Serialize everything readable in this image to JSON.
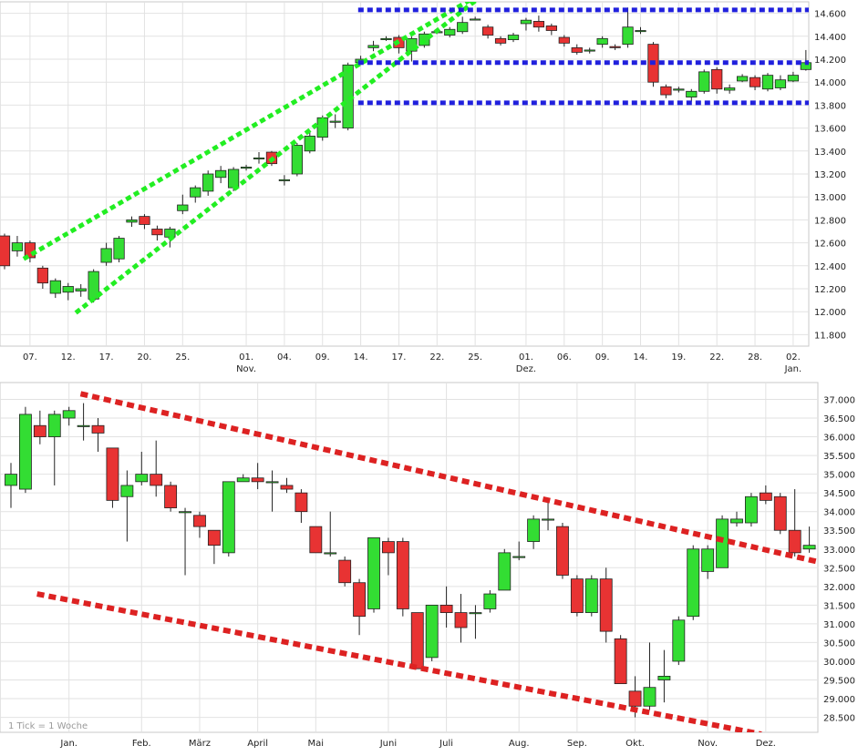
{
  "chart_data": [
    {
      "type": "candlestick",
      "name": "daily",
      "ylim": [
        11700,
        14700
      ],
      "yticks": [
        "11.800",
        "12.000",
        "12.200",
        "12.400",
        "12.600",
        "12.800",
        "13.000",
        "13.200",
        "13.400",
        "13.600",
        "13.800",
        "14.000",
        "14.200",
        "14.400",
        "14.600"
      ],
      "ytick_values": [
        11800,
        12000,
        12200,
        12400,
        12600,
        12800,
        13000,
        13200,
        13400,
        13600,
        13800,
        14000,
        14200,
        14400,
        14600
      ],
      "xticks": [
        {
          "label": "07.",
          "month": "",
          "i": 2
        },
        {
          "label": "12.",
          "month": "",
          "i": 5
        },
        {
          "label": "17.",
          "month": "",
          "i": 8
        },
        {
          "label": "20.",
          "month": "",
          "i": 11
        },
        {
          "label": "25.",
          "month": "",
          "i": 14
        },
        {
          "label": "01.",
          "month": "Nov.",
          "i": 19
        },
        {
          "label": "04.",
          "month": "",
          "i": 22
        },
        {
          "label": "09.",
          "month": "",
          "i": 25
        },
        {
          "label": "14.",
          "month": "",
          "i": 28
        },
        {
          "label": "17.",
          "month": "",
          "i": 31
        },
        {
          "label": "22.",
          "month": "",
          "i": 34
        },
        {
          "label": "25.",
          "month": "",
          "i": 37
        },
        {
          "label": "01.",
          "month": "Dez.",
          "i": 41
        },
        {
          "label": "06.",
          "month": "",
          "i": 44
        },
        {
          "label": "09.",
          "month": "",
          "i": 47
        },
        {
          "label": "14.",
          "month": "",
          "i": 50
        },
        {
          "label": "19.",
          "month": "",
          "i": 53
        },
        {
          "label": "22.",
          "month": "",
          "i": 56
        },
        {
          "label": "28.",
          "month": "",
          "i": 59
        },
        {
          "label": "02.",
          "month": "Jan.",
          "i": 62
        }
      ],
      "candles": [
        [
          12660,
          12400,
          12680,
          12370
        ],
        [
          12530,
          12600,
          12660,
          12480
        ],
        [
          12600,
          12470,
          12620,
          12430
        ],
        [
          12380,
          12250,
          12400,
          12200
        ],
        [
          12160,
          12270,
          12290,
          12120
        ],
        [
          12170,
          12220,
          12250,
          12100
        ],
        [
          12180,
          12200,
          12240,
          12130
        ],
        [
          12110,
          12350,
          12370,
          12080
        ],
        [
          12430,
          12550,
          12600,
          12400
        ],
        [
          12460,
          12640,
          12660,
          12430
        ],
        [
          12780,
          12800,
          12830,
          12740
        ],
        [
          12830,
          12760,
          12850,
          12720
        ],
        [
          12720,
          12670,
          12750,
          12620
        ],
        [
          12650,
          12720,
          12740,
          12560
        ],
        [
          12880,
          12930,
          13020,
          12850
        ],
        [
          13000,
          13080,
          13100,
          12950
        ],
        [
          13050,
          13200,
          13230,
          13010
        ],
        [
          13170,
          13230,
          13270,
          13120
        ],
        [
          13080,
          13240,
          13260,
          13050
        ],
        [
          13250,
          13260,
          13280,
          13230
        ],
        [
          13340,
          13340,
          13390,
          13290
        ],
        [
          13390,
          13290,
          13400,
          13270
        ],
        [
          13150,
          13150,
          13190,
          13100
        ],
        [
          13200,
          13450,
          13470,
          13180
        ],
        [
          13400,
          13530,
          13570,
          13380
        ],
        [
          13520,
          13690,
          13710,
          13490
        ],
        [
          13650,
          13660,
          13720,
          13600
        ],
        [
          13600,
          14150,
          14170,
          13580
        ],
        [
          14170,
          14200,
          14230,
          14150
        ],
        [
          14300,
          14320,
          14360,
          14270
        ],
        [
          14370,
          14380,
          14400,
          14360
        ],
        [
          14390,
          14300,
          14410,
          14250
        ],
        [
          14270,
          14380,
          14400,
          14180
        ],
        [
          14320,
          14420,
          14440,
          14300
        ],
        [
          14430,
          14440,
          14460,
          14420
        ],
        [
          14410,
          14460,
          14480,
          14390
        ],
        [
          14440,
          14520,
          14570,
          14420
        ],
        [
          14550,
          14550,
          14570,
          14540
        ],
        [
          14480,
          14410,
          14500,
          14380
        ],
        [
          14380,
          14340,
          14400,
          14320
        ],
        [
          14370,
          14410,
          14430,
          14350
        ],
        [
          14510,
          14540,
          14560,
          14450
        ],
        [
          14530,
          14480,
          14580,
          14440
        ],
        [
          14490,
          14450,
          14510,
          14410
        ],
        [
          14390,
          14340,
          14410,
          14310
        ],
        [
          14300,
          14260,
          14330,
          14240
        ],
        [
          14280,
          14280,
          14300,
          14250
        ],
        [
          14330,
          14380,
          14400,
          14300
        ],
        [
          14310,
          14300,
          14330,
          14280
        ],
        [
          14330,
          14480,
          14650,
          14300
        ],
        [
          14450,
          14450,
          14480,
          14420
        ],
        [
          14330,
          14000,
          14350,
          13960
        ],
        [
          13960,
          13890,
          13980,
          13860
        ],
        [
          13930,
          13940,
          13960,
          13910
        ],
        [
          13870,
          13920,
          13940,
          13830
        ],
        [
          13920,
          14090,
          14110,
          13900
        ],
        [
          14110,
          13940,
          14130,
          13900
        ],
        [
          13930,
          13950,
          13980,
          13900
        ],
        [
          14010,
          14050,
          14070,
          14000
        ],
        [
          14040,
          13960,
          14060,
          13930
        ],
        [
          13940,
          14060,
          14080,
          13920
        ],
        [
          13950,
          14020,
          14060,
          13930
        ],
        [
          14010,
          14060,
          14090,
          14000
        ],
        [
          14110,
          14170,
          14280,
          14100
        ]
      ],
      "overlays": [
        {
          "color": "#22ee22",
          "points": [
            [
              1.5,
              12460
            ],
            [
              37.6,
              14780
            ]
          ]
        },
        {
          "color": "#22ee22",
          "points": [
            [
              5.6,
              11990
            ],
            [
              37.6,
              14760
            ]
          ]
        },
        {
          "color": "#2020dd",
          "points": [
            [
              27.8,
              14630
            ],
            [
              64,
              14630
            ]
          ]
        },
        {
          "color": "#2020dd",
          "points": [
            [
              27.8,
              14170
            ],
            [
              64,
              14170
            ]
          ]
        },
        {
          "color": "#2020dd",
          "points": [
            [
              27.8,
              13820
            ],
            [
              64,
              13820
            ]
          ]
        }
      ]
    },
    {
      "type": "candlestick",
      "name": "weekly",
      "note": "1 Tick = 1 Woche",
      "ylim": [
        28100,
        37450
      ],
      "yticks": [
        "28.500",
        "29.000",
        "29.500",
        "30.000",
        "30.500",
        "31.000",
        "31.500",
        "32.000",
        "32.500",
        "33.000",
        "33.500",
        "34.000",
        "34.500",
        "35.000",
        "35.500",
        "36.000",
        "36.500",
        "37.000"
      ],
      "ytick_values": [
        28500,
        29000,
        29500,
        30000,
        30500,
        31000,
        31500,
        32000,
        32500,
        33000,
        33500,
        34000,
        34500,
        35000,
        35500,
        36000,
        36500,
        37000
      ],
      "xticks": [
        {
          "label": "Jan.",
          "i": 4
        },
        {
          "label": "Feb.",
          "i": 9
        },
        {
          "label": "März",
          "i": 13
        },
        {
          "label": "April",
          "i": 17
        },
        {
          "label": "Mai",
          "i": 21
        },
        {
          "label": "Juni",
          "i": 26
        },
        {
          "label": "Juli",
          "i": 30
        },
        {
          "label": "Aug.",
          "i": 35
        },
        {
          "label": "Sep.",
          "i": 39
        },
        {
          "label": "Okt.",
          "i": 43
        },
        {
          "label": "Nov.",
          "i": 48
        },
        {
          "label": "Dez.",
          "i": 52
        }
      ],
      "candles": [
        [
          34700,
          35000,
          35300,
          34100
        ],
        [
          34600,
          36600,
          36800,
          34500
        ],
        [
          36300,
          36000,
          36700,
          35800
        ],
        [
          36000,
          36600,
          36700,
          34700
        ],
        [
          36500,
          36700,
          36800,
          36300
        ],
        [
          36300,
          36300,
          36900,
          35900
        ],
        [
          36300,
          36100,
          36500,
          35600
        ],
        [
          35700,
          34300,
          35700,
          34100
        ],
        [
          34400,
          34700,
          35100,
          33200
        ],
        [
          34800,
          35000,
          35600,
          34700
        ],
        [
          35000,
          34700,
          35900,
          34400
        ],
        [
          34700,
          34100,
          34800,
          34000
        ],
        [
          34000,
          34000,
          34100,
          32300
        ],
        [
          33900,
          33600,
          34000,
          33300
        ],
        [
          33500,
          33100,
          33500,
          32600
        ],
        [
          32900,
          34800,
          34800,
          32800
        ],
        [
          34800,
          34900,
          35000,
          34800
        ],
        [
          34900,
          34800,
          35300,
          34600
        ],
        [
          34800,
          34800,
          35100,
          34000
        ],
        [
          34700,
          34600,
          34900,
          34500
        ],
        [
          34500,
          34000,
          34600,
          33700
        ],
        [
          33600,
          32900,
          33600,
          32900
        ],
        [
          32900,
          32900,
          34000,
          32800
        ],
        [
          32700,
          32100,
          32800,
          32000
        ],
        [
          32100,
          31200,
          32200,
          30700
        ],
        [
          31400,
          33300,
          33300,
          31300
        ],
        [
          33200,
          32900,
          33300,
          32300
        ],
        [
          33200,
          31400,
          33300,
          31200
        ],
        [
          31300,
          29800,
          31300,
          29800
        ],
        [
          30100,
          31500,
          31500,
          30000
        ],
        [
          31500,
          31300,
          32000,
          30900
        ],
        [
          31300,
          30900,
          31800,
          30500
        ],
        [
          31300,
          31300,
          31500,
          30600
        ],
        [
          31400,
          31800,
          31900,
          31300
        ],
        [
          31900,
          32900,
          33000,
          31900
        ],
        [
          32800,
          32800,
          33200,
          32700
        ],
        [
          33200,
          33800,
          33900,
          33000
        ],
        [
          33800,
          33800,
          34300,
          33500
        ],
        [
          33600,
          32300,
          33700,
          32200
        ],
        [
          32200,
          31300,
          32300,
          31200
        ],
        [
          31300,
          32200,
          32300,
          31200
        ],
        [
          32200,
          30800,
          32500,
          30500
        ],
        [
          30600,
          29400,
          30700,
          29400
        ],
        [
          29200,
          28800,
          29600,
          28500
        ],
        [
          28800,
          29300,
          30500,
          28700
        ],
        [
          29500,
          29600,
          30300,
          28900
        ],
        [
          30000,
          31100,
          31200,
          29900
        ],
        [
          31200,
          33000,
          33100,
          31100
        ],
        [
          32400,
          33000,
          33100,
          32200
        ],
        [
          32500,
          33800,
          33900,
          32500
        ],
        [
          33700,
          33800,
          34000,
          33600
        ],
        [
          33700,
          34400,
          34500,
          33600
        ],
        [
          34500,
          34300,
          34700,
          34200
        ],
        [
          34400,
          33500,
          34500,
          33400
        ],
        [
          33500,
          32900,
          34600,
          32800
        ],
        [
          33000,
          33100,
          33600,
          32900
        ]
      ],
      "overlays": [
        {
          "color": "#dd2222",
          "points": [
            [
              4.8,
              37150
            ],
            [
              55.7,
              32650
            ]
          ]
        },
        {
          "color": "#dd2222",
          "points": [
            [
              1.8,
              31800
            ],
            [
              51.7,
              28050
            ]
          ]
        }
      ]
    }
  ]
}
